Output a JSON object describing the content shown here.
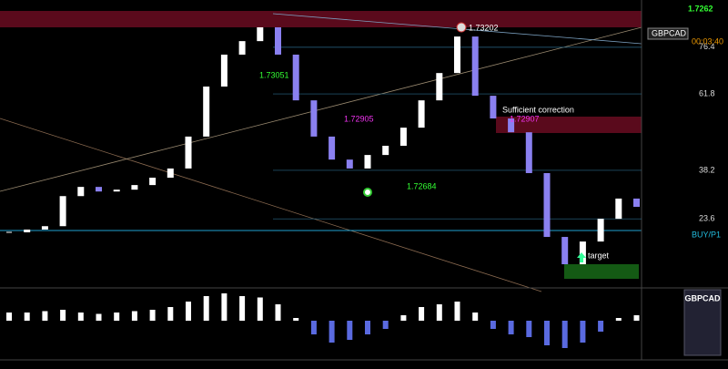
{
  "header": {
    "symbol": "GBPCAD",
    "price": "1.7262",
    "timer": "00:03:40"
  },
  "price_range": [
    1.7234,
    1.7329
  ],
  "closes": [
    1.72533,
    1.72542,
    1.72553,
    1.72651,
    1.72681,
    1.72666,
    1.72672,
    1.72687,
    1.72711,
    1.72741,
    1.72845,
    1.73008,
    1.73112,
    1.73156,
    1.73201,
    1.73112,
    1.72963,
    1.72845,
    1.7277,
    1.72741,
    1.72785,
    1.72815,
    1.72874,
    1.72963,
    1.73052,
    1.73171,
    1.72978,
    1.72904,
    1.72859,
    1.72726,
    1.72518,
    1.72429,
    1.72503,
    1.72577,
    1.72643,
    1.72616
  ],
  "oscillator": [
    0.3,
    0.3,
    0.35,
    0.4,
    0.3,
    0.25,
    0.3,
    0.35,
    0.4,
    0.5,
    0.7,
    0.9,
    1.0,
    0.9,
    0.85,
    0.6,
    0.1,
    -0.5,
    -0.8,
    -0.7,
    -0.5,
    -0.3,
    0.2,
    0.5,
    0.6,
    0.7,
    0.3,
    -0.3,
    -0.5,
    -0.6,
    -0.9,
    -1.0,
    -0.8,
    -0.4,
    0.1,
    0.2
  ],
  "levels": [
    {
      "label": "76.4",
      "price": 1.73136
    },
    {
      "label": "61.8",
      "price": 1.72984
    },
    {
      "label": "38.2",
      "price": 1.72735
    },
    {
      "label": "23.6",
      "price": 1.72577
    }
  ],
  "annotations": {
    "peak": "1.73202",
    "swing_a": "1.73051",
    "swing_b": "1.72905",
    "swing_c": "1.72907",
    "swing_low": "1.72684",
    "note": "Sufficient correction",
    "target": "target",
    "signal": "BUY/P1"
  },
  "panel": {
    "symbol": "GBPCAD"
  }
}
